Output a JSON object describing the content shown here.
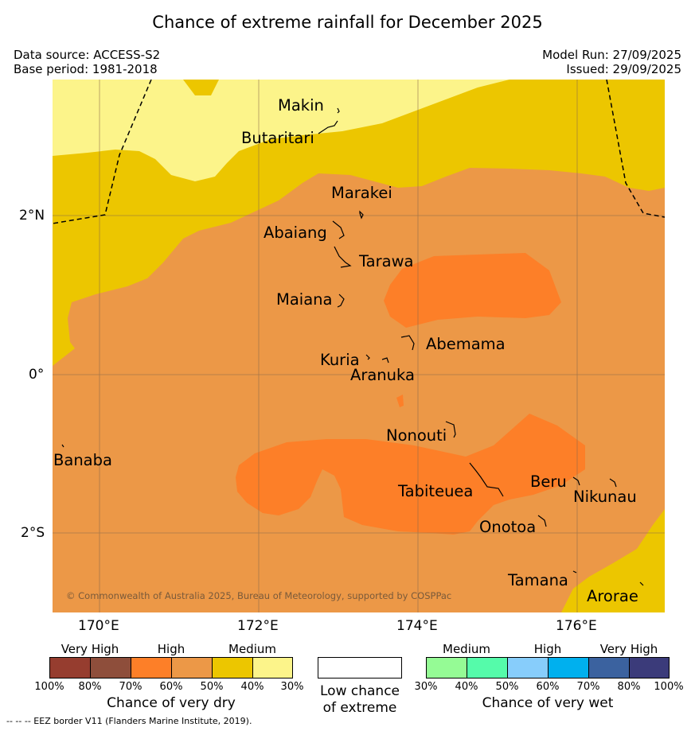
{
  "title": "Chance of extreme rainfall for December 2025",
  "meta": {
    "data_source": "Data source: ACCESS-S2",
    "base_period": "Base period: 1981-2018",
    "model_run": "Model Run: 27/09/2025",
    "issued": "Issued: 29/09/2025"
  },
  "colors": {
    "very_high_dry": "#963d2f",
    "very_high_dry2": "#8e4e3b",
    "high_dry": "#fd7f28",
    "high_dry2": "#ec9847",
    "medium_dry": "#ecc600",
    "medium_dry2": "#fcf48a",
    "low": "#ffffff",
    "medium_wet": "#95fb95",
    "medium_wet2": "#55fbaa",
    "high_wet": "#87cdfb",
    "high_wet2": "#00b0ee",
    "very_high_wet": "#3b629f",
    "very_high_wet2": "#3b3b7a"
  },
  "axes": {
    "x_ticks": [
      "170°E",
      "172°E",
      "174°E",
      "176°E"
    ],
    "y_ticks": [
      "2°N",
      "0°",
      "2°S"
    ]
  },
  "places": {
    "makin": "Makin",
    "butaritari": "Butaritari",
    "marakei": "Marakei",
    "abaiang": "Abaiang",
    "tarawa": "Tarawa",
    "maiana": "Maiana",
    "abemama": "Abemama",
    "kuria": "Kuria",
    "aranuka": "Aranuka",
    "nonouti": "Nonouti",
    "banaba": "Banaba",
    "tabiteuea": "Tabiteuea",
    "beru": "Beru",
    "nikunau": "Nikunau",
    "onotoa": "Onotoa",
    "tamana": "Tamana",
    "arorae": "Arorae"
  },
  "copyright": "© Commonwealth of Australia 2025, Bureau of Meteorology, supported by COSPPac",
  "legend": {
    "dry": {
      "headers": [
        "Very High",
        "High",
        "Medium"
      ],
      "ticks": [
        "100%",
        "80%",
        "70%",
        "60%",
        "50%",
        "40%",
        "30%"
      ],
      "title": "Chance of very dry"
    },
    "low": {
      "line1": "Low chance",
      "line2": "of extreme"
    },
    "wet": {
      "headers": [
        "Medium",
        "High",
        "Very High"
      ],
      "ticks": [
        "30%",
        "40%",
        "50%",
        "60%",
        "70%",
        "80%",
        "100%"
      ],
      "title": "Chance of very wet"
    }
  },
  "footnote": "--  --  -- EEZ border V11 (Flanders Marine Institute, 2019)."
}
